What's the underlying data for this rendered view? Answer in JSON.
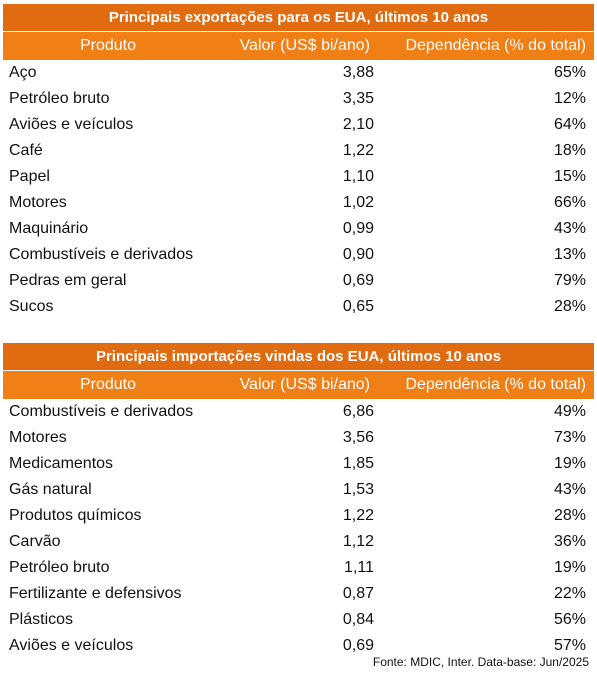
{
  "colors": {
    "title_bg": "#e06b10",
    "header_bg": "#f07f16",
    "header_text": "#ffffff"
  },
  "tables": [
    {
      "title": "Principais exportações para os EUA, últimos 10 anos",
      "headers": [
        "Produto",
        "Valor (US$ bi/ano)",
        "Dependência (% do total)"
      ],
      "rows": [
        [
          "Aço",
          "3,88",
          "65%"
        ],
        [
          "Petróleo bruto",
          "3,35",
          "12%"
        ],
        [
          "Aviões e veículos",
          "2,10",
          "64%"
        ],
        [
          "Café",
          "1,22",
          "18%"
        ],
        [
          "Papel",
          "1,10",
          "15%"
        ],
        [
          "Motores",
          "1,02",
          "66%"
        ],
        [
          "Maquinário",
          "0,99",
          "43%"
        ],
        [
          "Combustíveis e derivados",
          "0,90",
          "13%"
        ],
        [
          "Pedras em geral",
          "0,69",
          "79%"
        ],
        [
          "Sucos",
          "0,65",
          "28%"
        ]
      ]
    },
    {
      "title": "Principais importações vindas dos EUA, últimos 10 anos",
      "headers": [
        "Produto",
        "Valor (US$ bi/ano)",
        "Dependência (% do total)"
      ],
      "rows": [
        [
          "Combustíveis e derivados",
          "6,86",
          "49%"
        ],
        [
          "Motores",
          "3,56",
          "73%"
        ],
        [
          "Medicamentos",
          "1,85",
          "19%"
        ],
        [
          "Gás natural",
          "1,53",
          "43%"
        ],
        [
          "Produtos químicos",
          "1,22",
          "28%"
        ],
        [
          "Carvão",
          "1,12",
          "36%"
        ],
        [
          "Petróleo bruto",
          "1,11",
          "19%"
        ],
        [
          "Fertilizante e defensivos",
          "0,87",
          "22%"
        ],
        [
          "Plásticos",
          "0,84",
          "56%"
        ],
        [
          "Aviões e veículos",
          "0,69",
          "57%"
        ]
      ]
    }
  ],
  "footer": "Fonte: MDIC, Inter. Data-base: Jun/2025",
  "chart_data": [
    {
      "type": "table",
      "title": "Principais exportações para os EUA, últimos 10 anos",
      "columns": [
        "Produto",
        "Valor (US$ bi/ano)",
        "Dependência (% do total)"
      ],
      "categories": [
        "Aço",
        "Petróleo bruto",
        "Aviões e veículos",
        "Café",
        "Papel",
        "Motores",
        "Maquinário",
        "Combustíveis e derivados",
        "Pedras em geral",
        "Sucos"
      ],
      "series": [
        {
          "name": "Valor (US$ bi/ano)",
          "values": [
            3.88,
            3.35,
            2.1,
            1.22,
            1.1,
            1.02,
            0.99,
            0.9,
            0.69,
            0.65
          ]
        },
        {
          "name": "Dependência (% do total)",
          "values": [
            65,
            12,
            64,
            18,
            15,
            66,
            43,
            13,
            79,
            28
          ]
        }
      ]
    },
    {
      "type": "table",
      "title": "Principais importações vindas dos EUA, últimos 10 anos",
      "columns": [
        "Produto",
        "Valor (US$ bi/ano)",
        "Dependência (% do total)"
      ],
      "categories": [
        "Combustíveis e derivados",
        "Motores",
        "Medicamentos",
        "Gás natural",
        "Produtos químicos",
        "Carvão",
        "Petróleo bruto",
        "Fertilizante e defensivos",
        "Plásticos",
        "Aviões e veículos"
      ],
      "series": [
        {
          "name": "Valor (US$ bi/ano)",
          "values": [
            6.86,
            3.56,
            1.85,
            1.53,
            1.22,
            1.12,
            1.11,
            0.87,
            0.84,
            0.69
          ]
        },
        {
          "name": "Dependência (% do total)",
          "values": [
            49,
            73,
            19,
            43,
            28,
            36,
            19,
            22,
            56,
            57
          ]
        }
      ]
    }
  ]
}
